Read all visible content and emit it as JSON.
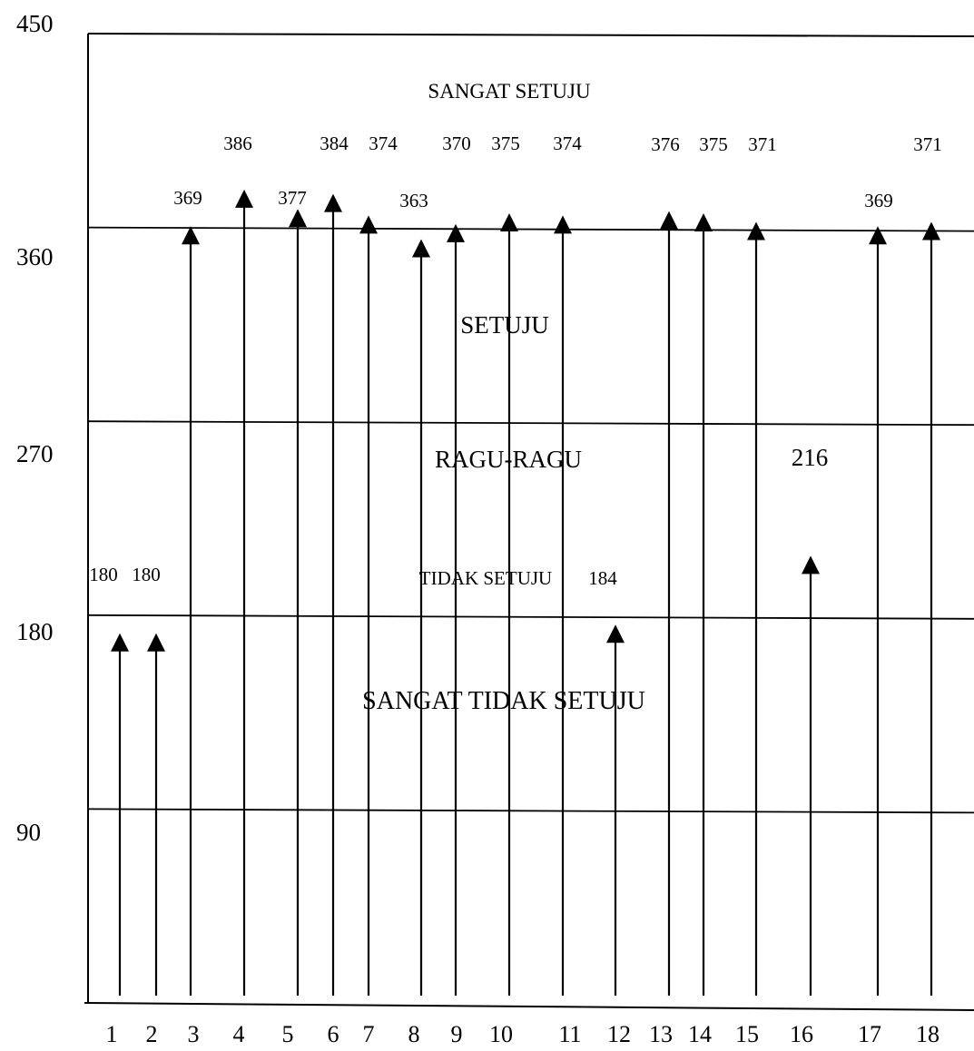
{
  "chart_data": {
    "type": "bar",
    "style": "arrows",
    "categories": [
      "1",
      "2",
      "3",
      "4",
      "5",
      "6",
      "7",
      "8",
      "9",
      "10",
      "11",
      "12",
      "13",
      "14",
      "15",
      "16",
      "17",
      "18"
    ],
    "values": [
      180,
      180,
      369,
      386,
      377,
      384,
      374,
      363,
      370,
      375,
      374,
      184,
      376,
      375,
      371,
      216,
      369,
      371
    ],
    "ylim": [
      0,
      450
    ],
    "yticks": [
      90,
      180,
      270,
      360,
      450
    ],
    "grid": true,
    "zones": [
      {
        "label": "SANGAT SETUJU"
      },
      {
        "label": "SETUJU"
      },
      {
        "label": "RAGU-RAGU"
      },
      {
        "label": "TIDAK  SETUJU"
      },
      {
        "label": "SANGAT TIDAK SETUJU"
      }
    ]
  }
}
